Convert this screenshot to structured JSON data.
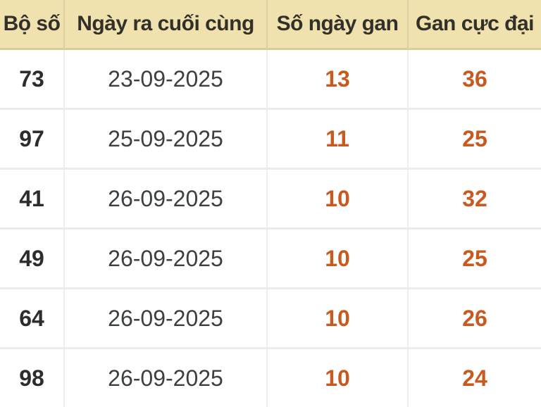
{
  "colors": {
    "header_bg": "#f0e2ae",
    "header_text": "#33302a",
    "number_text": "#2d2d2d",
    "date_text": "#3c4043",
    "highlight_text": "#c85a1f",
    "row_bg": "#ffffff",
    "divider": "#ebebeb"
  },
  "table": {
    "headers": {
      "bo_so": "Bộ số",
      "ngay_ra_cuoi_cung": "Ngày ra cuối cùng",
      "so_ngay_gan": "Số ngày gan",
      "gan_cuc_dai": "Gan cực đại"
    },
    "rows": [
      {
        "bo_so": "73",
        "ngay_ra_cuoi_cung": "23-09-2025",
        "so_ngay_gan": "13",
        "gan_cuc_dai": "36"
      },
      {
        "bo_so": "97",
        "ngay_ra_cuoi_cung": "25-09-2025",
        "so_ngay_gan": "11",
        "gan_cuc_dai": "25"
      },
      {
        "bo_so": "41",
        "ngay_ra_cuoi_cung": "26-09-2025",
        "so_ngay_gan": "10",
        "gan_cuc_dai": "32"
      },
      {
        "bo_so": "49",
        "ngay_ra_cuoi_cung": "26-09-2025",
        "so_ngay_gan": "10",
        "gan_cuc_dai": "25"
      },
      {
        "bo_so": "64",
        "ngay_ra_cuoi_cung": "26-09-2025",
        "so_ngay_gan": "10",
        "gan_cuc_dai": "26"
      },
      {
        "bo_so": "98",
        "ngay_ra_cuoi_cung": "26-09-2025",
        "so_ngay_gan": "10",
        "gan_cuc_dai": "24"
      }
    ]
  }
}
